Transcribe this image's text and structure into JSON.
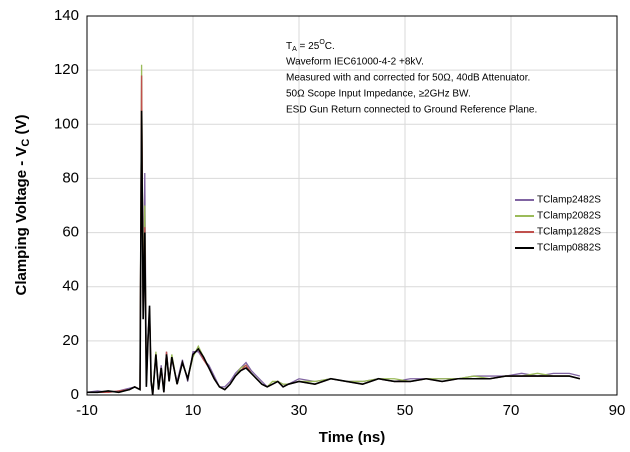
{
  "chart_data": {
    "type": "line",
    "xlabel": "Time (ns)",
    "ylabel": {
      "main": "Clamping Voltage - V",
      "sub": "C",
      "end": " (V)"
    },
    "annotation": {
      "first": {
        "t": "T",
        "sub": "A",
        "mid": " = 25",
        "sup": "O",
        "end": "C."
      },
      "lines": [
        "Waveform IEC61000-4-2 +8kV.",
        "Measured with and corrected for 50Ω, 40dB Attenuator.",
        "50Ω Scope Input Impedance, ≥2GHz BW.",
        "ESD Gun Return connected to Ground Reference Plane."
      ]
    },
    "xlim": [
      -10,
      90
    ],
    "xticks": [
      -10,
      10,
      30,
      50,
      70,
      90
    ],
    "ylim": [
      0,
      140
    ],
    "yticks": [
      0,
      20,
      40,
      60,
      80,
      100,
      120,
      140
    ],
    "grid": true,
    "legend": "right",
    "x": [
      -10,
      -8,
      -6,
      -4,
      -2,
      -1,
      0,
      0.3,
      0.6,
      0.9,
      1.2,
      1.5,
      1.8,
      2.1,
      2.4,
      3,
      3.5,
      4,
      4.5,
      5,
      5.5,
      6,
      7,
      8,
      9,
      10,
      11,
      12,
      13,
      14,
      15,
      16,
      17,
      18,
      19,
      20,
      21,
      22,
      23,
      24,
      25,
      26,
      27,
      28,
      30,
      33,
      36,
      39,
      42,
      45,
      48,
      51,
      54,
      57,
      60,
      63,
      66,
      69,
      72,
      75,
      78,
      81,
      83
    ],
    "series": [
      {
        "name": "TClamp2482S",
        "color": "#8064a2",
        "values": [
          1,
          1.5,
          1,
          1.5,
          2.5,
          3,
          2,
          118,
          30,
          82,
          5,
          22,
          30,
          4,
          1,
          14,
          3,
          11,
          2,
          16,
          6,
          13,
          5,
          13,
          5,
          16,
          16,
          13,
          11,
          7,
          3,
          3,
          5,
          8,
          10,
          12,
          9,
          7,
          5,
          3,
          4,
          5,
          4,
          4,
          6,
          5,
          6,
          5,
          5,
          6,
          5,
          6,
          6,
          6,
          6,
          7,
          7,
          7,
          8,
          7,
          8,
          8,
          7
        ]
      },
      {
        "name": "TClamp2082S",
        "color": "#9bbb59",
        "values": [
          1,
          1,
          1.5,
          1,
          2,
          3,
          2,
          122,
          32,
          70,
          4,
          21,
          31,
          5,
          1,
          16,
          2,
          10,
          2,
          15,
          5,
          15,
          4,
          12,
          6,
          14,
          18,
          14,
          10,
          6,
          3,
          2,
          4,
          7,
          10,
          11,
          8,
          6,
          4,
          3,
          5,
          5,
          4,
          4,
          5,
          5,
          6,
          5,
          5,
          6,
          6,
          5,
          6,
          6,
          6,
          7,
          6,
          7,
          7,
          8,
          7,
          7,
          6
        ]
      },
      {
        "name": "TClamp1282S",
        "color": "#c0504d",
        "values": [
          1,
          1,
          1,
          1.5,
          2,
          3,
          2,
          118,
          29,
          62,
          4,
          20,
          32,
          5,
          0,
          15,
          2,
          10,
          1,
          16,
          5,
          14,
          4,
          12,
          6,
          15,
          17,
          13,
          10,
          6,
          3,
          2,
          4,
          7,
          9,
          11,
          8,
          6,
          4,
          3,
          4,
          5,
          3,
          4,
          5,
          4,
          6,
          5,
          4,
          6,
          5,
          5,
          6,
          5,
          6,
          6,
          6,
          7,
          7,
          7,
          7,
          7,
          6
        ]
      },
      {
        "name": "TClamp0882S",
        "color": "#000000",
        "values": [
          1,
          1,
          1.5,
          1,
          2,
          3,
          2,
          105,
          28,
          60,
          3,
          20,
          33,
          5,
          0,
          15,
          2,
          10,
          1,
          15,
          5,
          14,
          4,
          12,
          6,
          15,
          17,
          14,
          10,
          6,
          3,
          2,
          4,
          7,
          9,
          10,
          8,
          6,
          4,
          3,
          4,
          5,
          3,
          4,
          5,
          4,
          6,
          5,
          4,
          6,
          5,
          5,
          6,
          5,
          6,
          6,
          6,
          7,
          7,
          7,
          7,
          7,
          6
        ]
      }
    ]
  }
}
